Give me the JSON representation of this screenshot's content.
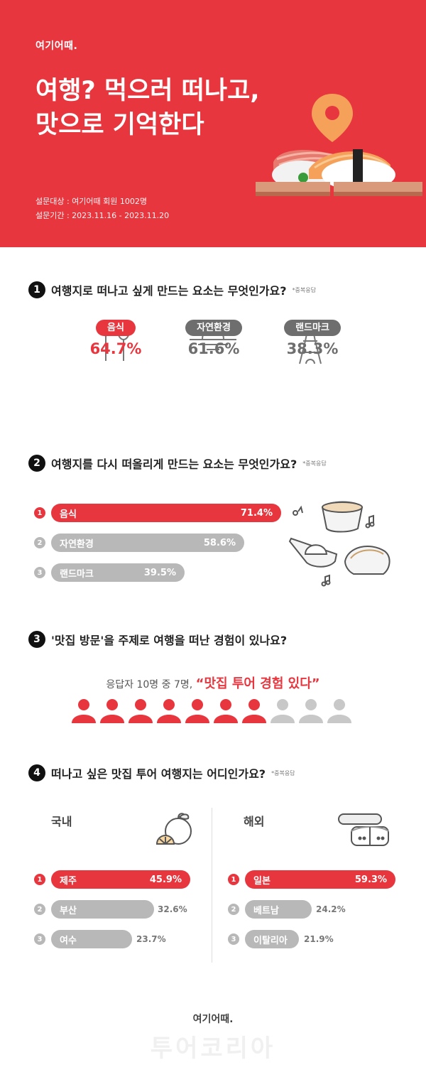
{
  "brand": "여기어때.",
  "hero": {
    "title_line1": "여행? 먹으러 떠나고,",
    "title_line2": "맛으로 기억한다",
    "meta_line1": "설문대상 : 여기어때 회원 1002명",
    "meta_line2": "설문기간 : 2023.11.16 - 2023.11.20"
  },
  "q1": {
    "num": "1",
    "question": "여행지로 떠나고 싶게 만드는 요소는 무엇인가요?",
    "note": "*중복응답",
    "items": [
      {
        "label": "음식",
        "value": "64.7%",
        "icon": "fork-spoon-icon"
      },
      {
        "label": "자연환경",
        "value": "61.6%",
        "icon": "sunset-icon"
      },
      {
        "label": "랜드마크",
        "value": "38.3%",
        "icon": "eiffel-tower-icon"
      }
    ]
  },
  "q2": {
    "num": "2",
    "question": "여행지를 다시 떠올리게 만드는 요소는 무엇인가요?",
    "note": "*중복응답",
    "items": [
      {
        "rank": "1",
        "label": "음식",
        "value": "71.4%",
        "fraction": 0.714
      },
      {
        "rank": "2",
        "label": "자연환경",
        "value": "58.6%",
        "fraction": 0.586
      },
      {
        "rank": "3",
        "label": "랜드마크",
        "value": "39.5%",
        "fraction": 0.395
      }
    ]
  },
  "q3": {
    "num": "3",
    "question": "'맛집 방문'을 주제로 여행을 떠난 경험이 있나요?",
    "summary_prefix": "응답자 10명 중 7명,",
    "summary_highlight": "“맛집 투어 경험 있다”",
    "people_total": 10,
    "people_highlight": 7
  },
  "q4": {
    "num": "4",
    "question": "떠나고 싶은 맛집 투어 여행지는 어디인가요?",
    "note": "*중복응답",
    "domestic": {
      "title": "국내",
      "items": [
        {
          "rank": "1",
          "label": "제주",
          "value": "45.9%",
          "fraction": 0.459
        },
        {
          "rank": "2",
          "label": "부산",
          "value": "32.6%",
          "fraction": 0.326
        },
        {
          "rank": "3",
          "label": "여수",
          "value": "23.7%",
          "fraction": 0.237
        }
      ]
    },
    "overseas": {
      "title": "해외",
      "items": [
        {
          "rank": "1",
          "label": "일본",
          "value": "59.3%",
          "fraction": 0.593
        },
        {
          "rank": "2",
          "label": "베트남",
          "value": "24.2%",
          "fraction": 0.242
        },
        {
          "rank": "3",
          "label": "이탈리아",
          "value": "21.9%",
          "fraction": 0.219
        }
      ]
    }
  },
  "footer": {
    "logo": "여기어때.",
    "watermark": "투어코리아"
  },
  "colors": {
    "accent": "#e8363f",
    "gray": "#b8b8b8",
    "dark": "#6e6e6e"
  }
}
